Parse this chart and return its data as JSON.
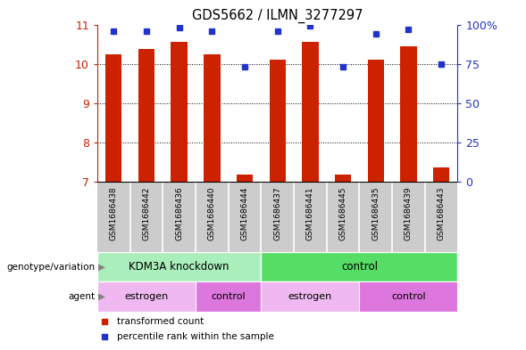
{
  "title": "GDS5662 / ILMN_3277297",
  "samples": [
    "GSM1686438",
    "GSM1686442",
    "GSM1686436",
    "GSM1686440",
    "GSM1686444",
    "GSM1686437",
    "GSM1686441",
    "GSM1686445",
    "GSM1686435",
    "GSM1686439",
    "GSM1686443"
  ],
  "transformed_counts": [
    10.25,
    10.38,
    10.55,
    10.25,
    7.18,
    10.1,
    10.55,
    7.18,
    10.1,
    10.45,
    7.38
  ],
  "percentile_ranks": [
    96,
    96,
    98,
    96,
    73,
    96,
    99,
    73,
    94,
    97,
    75
  ],
  "ylim_left": [
    7,
    11
  ],
  "yticks_left": [
    7,
    8,
    9,
    10,
    11
  ],
  "yticks_right": [
    0,
    25,
    50,
    75,
    100
  ],
  "ytick_labels_right": [
    "0",
    "25",
    "50",
    "75",
    "100%"
  ],
  "bar_color": "#cc2200",
  "dot_color": "#2233cc",
  "genotype_groups": [
    {
      "label": "KDM3A knockdown",
      "start": 0,
      "end": 5,
      "color": "#aaeebb"
    },
    {
      "label": "control",
      "start": 5,
      "end": 11,
      "color": "#55dd66"
    }
  ],
  "agent_groups": [
    {
      "label": "estrogen",
      "start": 0,
      "end": 3,
      "color": "#f0b8f0"
    },
    {
      "label": "control",
      "start": 3,
      "end": 5,
      "color": "#dd77dd"
    },
    {
      "label": "estrogen",
      "start": 5,
      "end": 8,
      "color": "#f0b8f0"
    },
    {
      "label": "control",
      "start": 8,
      "end": 11,
      "color": "#dd77dd"
    }
  ],
  "left_axis_color": "#cc2200",
  "right_axis_color": "#2233cc",
  "sample_bg": "#cccccc",
  "legend_red_label": "transformed count",
  "legend_blue_label": "percentile rank within the sample",
  "geno_label": "genotype/variation",
  "agent_label": "agent"
}
